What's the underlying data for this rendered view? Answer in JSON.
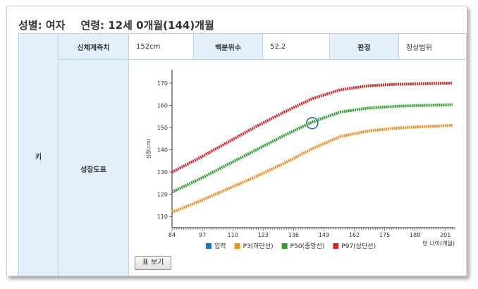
{
  "header": {
    "gender": "성별: 여자",
    "age": "연령: 12세 0개월(144)개월"
  },
  "row_label": "키",
  "measure": {
    "label": "신체계측치",
    "value": "152cm"
  },
  "percentile": {
    "label": "백분위수",
    "value": "52.2"
  },
  "judgment": {
    "label": "판정",
    "value": "정상범위"
  },
  "chart_row_label": "성장도표",
  "button_label": "표 보기",
  "chart_data": {
    "type": "line",
    "xlabel": "만 나이(개월)",
    "ylabel": "신장(cm)",
    "xlim": [
      84,
      205
    ],
    "ylim": [
      105,
      176
    ],
    "x_ticks": [
      84,
      97,
      110,
      123,
      136,
      149,
      162,
      175,
      188,
      201
    ],
    "y_ticks": [
      110,
      120,
      130,
      140,
      150,
      160,
      170
    ],
    "colors": {
      "입력": "#1f77b4",
      "P3": "#f28e1e",
      "P50": "#2ca02c",
      "P97": "#d62728"
    },
    "series": [
      {
        "name": "입력",
        "x": [
          144
        ],
        "y": [
          152
        ]
      },
      {
        "name": "P3(하단선)",
        "x": [
          84,
          96,
          108,
          120,
          132,
          144,
          156,
          168,
          180,
          192,
          204
        ],
        "y": [
          112,
          117,
          122.5,
          128,
          134,
          140.5,
          146,
          148.5,
          149.8,
          150.5,
          151
        ]
      },
      {
        "name": "P50(중앙선)",
        "x": [
          84,
          96,
          108,
          120,
          132,
          144,
          156,
          168,
          180,
          192,
          204
        ],
        "y": [
          121,
          127,
          133.5,
          140,
          146.5,
          152.5,
          157,
          158.8,
          159.6,
          160,
          160.3
        ]
      },
      {
        "name": "P97(상단선)",
        "x": [
          84,
          96,
          108,
          120,
          132,
          144,
          156,
          168,
          180,
          192,
          204
        ],
        "y": [
          130,
          136.5,
          143.5,
          150.5,
          157,
          163,
          167,
          168.8,
          169.5,
          169.8,
          170
        ]
      }
    ]
  }
}
